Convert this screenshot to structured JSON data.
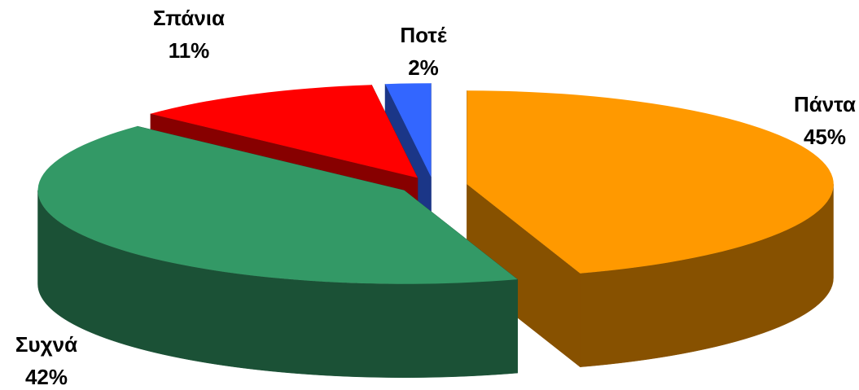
{
  "chart_data": {
    "type": "pie3d",
    "categories": [
      "Πάντα",
      "Συχνά",
      "Σπάνια",
      "Ποτέ"
    ],
    "values": [
      45,
      42,
      11,
      2
    ],
    "value_labels": [
      "45%",
      "42%",
      "11%",
      "2%"
    ],
    "colors": [
      "#FF9900",
      "#339966",
      "#FF0000",
      "#3366FF"
    ]
  }
}
